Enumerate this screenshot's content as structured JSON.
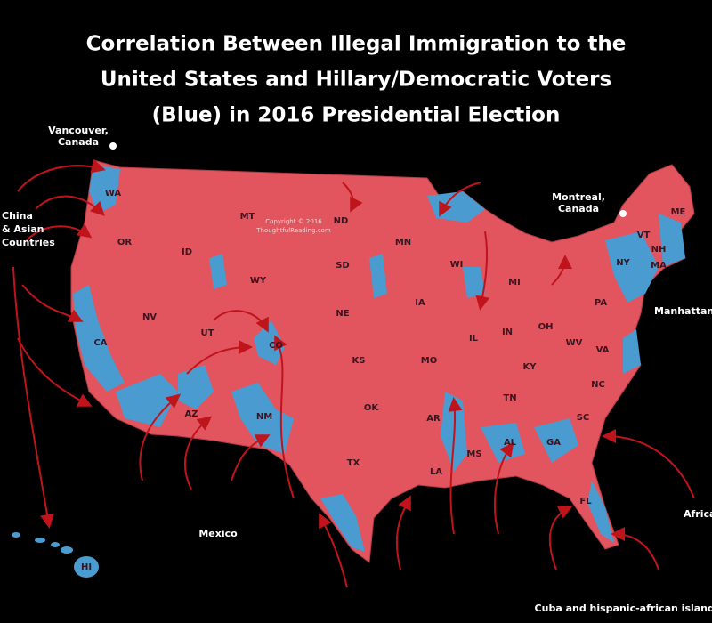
{
  "title": [
    "Correlation Between Illegal Immigration to the",
    "United States and Hillary/Democratic Voters",
    "(Blue) in 2016 Presidential Election"
  ],
  "copyright": [
    "Copyright © 2016",
    "ThoughtfulReading.com"
  ],
  "labels": [
    {
      "lines": [
        "Vancouver,",
        "Canada"
      ]
    },
    {
      "lines": [
        "China",
        "& Asian",
        "Countries"
      ]
    },
    {
      "lines": [
        "Montreal,",
        "Canada"
      ]
    },
    {
      "lines": [
        "Manhattan"
      ]
    },
    {
      "lines": [
        "Mexico"
      ]
    },
    {
      "lines": [
        "Africa"
      ]
    },
    {
      "lines": [
        "Cuba and hispanic-african islands"
      ]
    }
  ],
  "states": [
    "WA",
    "OR",
    "CA",
    "ID",
    "NV",
    "MT",
    "WY",
    "UT",
    "AZ",
    "CO",
    "NM",
    "ND",
    "SD",
    "NE",
    "KS",
    "OK",
    "TX",
    "MN",
    "IA",
    "MO",
    "AR",
    "LA",
    "WI",
    "IL",
    "MS",
    "MI",
    "IN",
    "KY",
    "TN",
    "AL",
    "OH",
    "GA",
    "FL",
    "WV",
    "VA",
    "NC",
    "SC",
    "PA",
    "NY",
    "VT",
    "NH",
    "ME",
    "MA",
    "HI"
  ]
}
